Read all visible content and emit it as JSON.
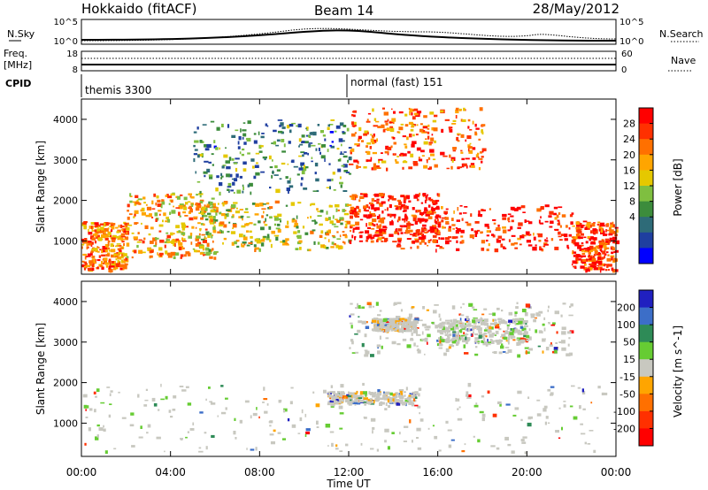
{
  "header": {
    "station": "Hokkaido (fitACF)",
    "beam": "Beam 14",
    "date": "28/May/2012"
  },
  "noise_panel": {
    "left_label": "N.Sky",
    "right_label": "N.Search",
    "tick_top": "10^5",
    "tick_bottom": "10^0"
  },
  "freq_panel": {
    "left_label_line1": "Freq.",
    "left_label_line2": "[MHz]",
    "right_label": "Nave",
    "left_ticks": [
      "18",
      "8"
    ],
    "right_ticks": [
      "60",
      "0"
    ]
  },
  "cpid": {
    "label": "CPID",
    "modes": [
      {
        "name": "themis 3300",
        "start_hour": 0
      },
      {
        "name": "normal (fast) 151",
        "start_hour": 12
      }
    ]
  },
  "chart_data": [
    {
      "type": "heatmap",
      "name": "Power",
      "ylabel": "Slant Range [km]",
      "xlabel": "Time UT",
      "xlim": [
        0,
        24
      ],
      "ylim": [
        180,
        4500
      ],
      "x_ticks": [
        "00:00",
        "04:00",
        "08:00",
        "12:00",
        "16:00",
        "20:00",
        "00:00"
      ],
      "y_ticks": [
        1000,
        2000,
        3000,
        4000
      ],
      "colorbar": {
        "label": "Power [dB]",
        "ticks": [
          "28",
          "24",
          "20",
          "16",
          "12",
          "8",
          "4"
        ],
        "colors": [
          "#ff0000",
          "#ff3000",
          "#ff7000",
          "#ffa500",
          "#e5c800",
          "#7fbf40",
          "#3c8c3c",
          "#2e6b78",
          "#1f3fa0",
          "#0000ff"
        ]
      },
      "bands": [
        {
          "h0": 0,
          "h1": 2,
          "r0": 300,
          "r1": 1500,
          "level": 0.75
        },
        {
          "h0": 2,
          "h1": 6,
          "r0": 600,
          "r1": 2200,
          "level": 0.65
        },
        {
          "h0": 5,
          "h1": 12,
          "r0": 800,
          "r1": 2000,
          "level": 0.55
        },
        {
          "h0": 5,
          "h1": 12,
          "r0": 2200,
          "r1": 4000,
          "level": 0.3
        },
        {
          "h0": 12,
          "h1": 16,
          "r0": 1000,
          "r1": 2200,
          "level": 0.95
        },
        {
          "h0": 14,
          "h1": 22,
          "r0": 800,
          "r1": 1900,
          "level": 0.95
        },
        {
          "h0": 12,
          "h1": 18,
          "r0": 2800,
          "r1": 4300,
          "level": 0.8
        },
        {
          "h0": 22,
          "h1": 24,
          "r0": 300,
          "r1": 1500,
          "level": 0.9
        }
      ]
    },
    {
      "type": "heatmap",
      "name": "Velocity",
      "ylabel": "Slant Range [km]",
      "xlabel": "Time UT",
      "xlim": [
        0,
        24
      ],
      "ylim": [
        180,
        4500
      ],
      "x_ticks": [
        "00:00",
        "04:00",
        "08:00",
        "12:00",
        "16:00",
        "20:00",
        "00:00"
      ],
      "y_ticks": [
        1000,
        2000,
        3000,
        4000
      ],
      "colorbar": {
        "label": "Velocity [m s^-1]",
        "ticks": [
          "200",
          "100",
          "50",
          "15",
          "-15",
          "-50",
          "-100",
          "-200"
        ],
        "colors": [
          "#2020c0",
          "#3c6ec8",
          "#2e8b57",
          "#66cc33",
          "#c8c8c0",
          "#ffa500",
          "#ff7000",
          "#ff3000",
          "#ff0000"
        ]
      },
      "bands": [
        {
          "h0": 0,
          "h1": 24,
          "r0": 300,
          "r1": 2000,
          "level": 0.5
        },
        {
          "h0": 12,
          "h1": 22,
          "r0": 2700,
          "r1": 4000,
          "level": 0.5
        },
        {
          "h0": 16,
          "h1": 20,
          "r0": 3000,
          "r1": 3600,
          "level": 0.3
        },
        {
          "h0": 13,
          "h1": 15,
          "r0": 3300,
          "r1": 3600,
          "level": 0.6
        },
        {
          "h0": 11,
          "h1": 15,
          "r0": 1500,
          "r1": 1800,
          "level": 0.6
        }
      ]
    }
  ]
}
